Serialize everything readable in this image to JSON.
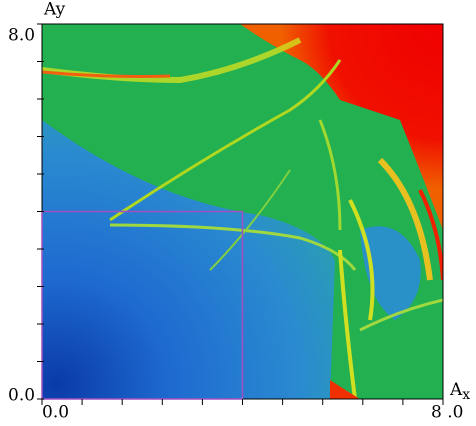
{
  "chart_data": {
    "type": "heatmap",
    "x_label": {
      "main": "A",
      "sub": "x"
    },
    "y_label": "Ay",
    "xlim": [
      0,
      8
    ],
    "ylim": [
      0,
      8
    ],
    "xticks": [
      {
        "value": 0,
        "label": "0.0"
      },
      {
        "value": 8,
        "label": "8 .0"
      }
    ],
    "yticks": [
      {
        "value": 0,
        "label": "0.0"
      },
      {
        "value": 8,
        "label": "8.0"
      }
    ],
    "x_minor_ticks": [
      0.8,
      1.6,
      2.4,
      3.2,
      4,
      4.8,
      5.6,
      6.4,
      7.2
    ],
    "y_minor_ticks": [
      0.8,
      1.6,
      2.4,
      3.2,
      4,
      4.8,
      5.6,
      6.4,
      7.2
    ],
    "highlight_box": {
      "x": [
        0,
        4
      ],
      "y": [
        0,
        4
      ],
      "color": "#a050c0"
    }
  }
}
